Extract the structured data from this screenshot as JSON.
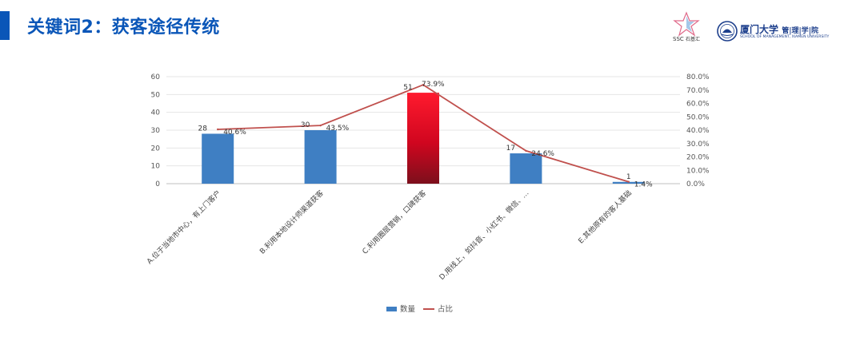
{
  "header": {
    "title": "关键词2：获客途径传统",
    "accent_color": "#0a56b8",
    "logos": {
      "ssc": {
        "text": "SSC",
        "text_cn": "石基汇"
      },
      "xmu": {
        "name_cn": "厦门大学",
        "school_cn": "管|理|学|院",
        "name_en": "SCHOOL OF MANAGEMENT, XIAMEN UNIVERSITY"
      }
    }
  },
  "chart_data": {
    "type": "bar",
    "categories": [
      "A.位于当地市中心，有上门客户",
      "B.利用本地设计师渠道获客",
      "C.利用圈层营销，口碑获客",
      "D.用线上，如抖音、小红书、微信、…",
      "E.其他原有的客人基础"
    ],
    "series": [
      {
        "name": "数量",
        "type": "bar",
        "axis": "left",
        "values": [
          28,
          30,
          51,
          17,
          1
        ],
        "labels": [
          "28",
          "30",
          "51",
          "17",
          "1"
        ],
        "color": "#3f7fc3",
        "highlight_color": "#d0061f"
      },
      {
        "name": "占比",
        "type": "line",
        "axis": "right",
        "values": [
          40.6,
          43.5,
          73.9,
          24.6,
          1.4
        ],
        "labels": [
          "40.6%",
          "43.5%",
          "73.9%",
          "24.6%",
          "1.4%"
        ],
        "color": "#c0504d"
      }
    ],
    "highlight_index": 2,
    "ylim": [
      0,
      60
    ],
    "yticks": [
      "0",
      "10",
      "20",
      "30",
      "40",
      "50",
      "60"
    ],
    "y2lim": [
      0,
      80
    ],
    "y2ticks": [
      "0.0%",
      "10.0%",
      "20.0%",
      "30.0%",
      "40.0%",
      "50.0%",
      "60.0%",
      "70.0%",
      "80.0%"
    ],
    "grid": true,
    "legend_position": "bottom"
  }
}
